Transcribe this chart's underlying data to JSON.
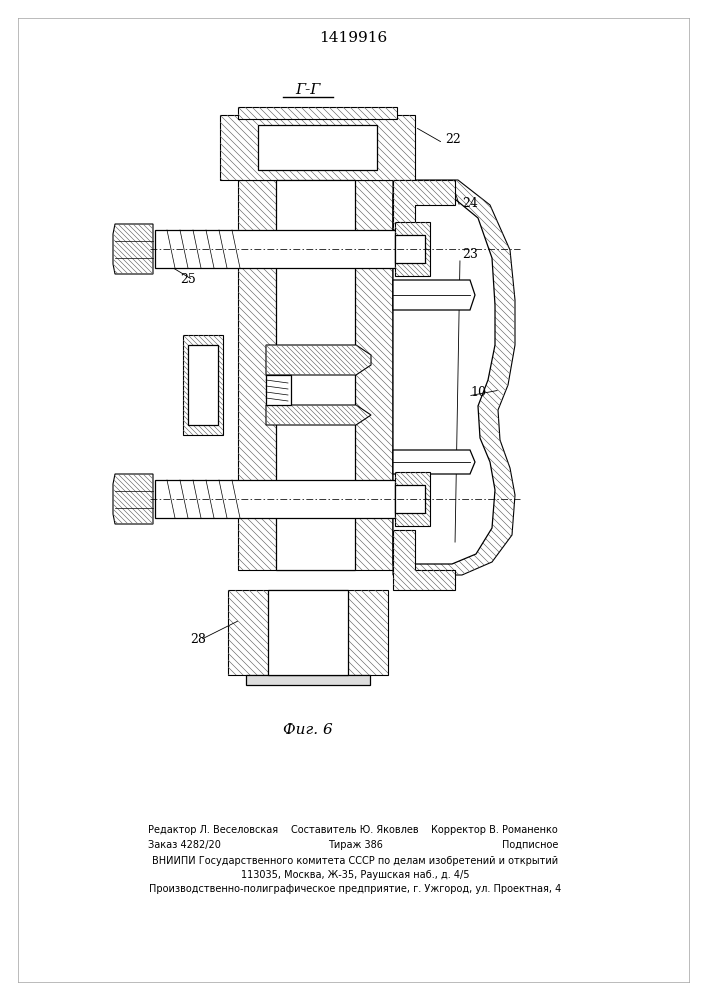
{
  "patent_number": "1419916",
  "section_label": "Г-Г",
  "figure_label": "Фиг. 6",
  "bg_color": "#ffffff",
  "line_color": "#000000",
  "hatch_color": "#555555",
  "footer": [
    [
      "Редактор Л. Веселовская",
      "Составитель Ю. Яковлев",
      "Корректор В. Романенко"
    ],
    [
      "Заказ 4282/20",
      "Тираж 386",
      "Подписное"
    ],
    [
      "ВНИИПИ Государственного комитета СССР по делам изобретений и открытий"
    ],
    [
      "113035, Москва, Ж-35, Раушская наб., д. 4/5"
    ],
    [
      "Производственно-полиграфическое предприятие, г. Ужгород, ул. Проектная, 4"
    ]
  ]
}
